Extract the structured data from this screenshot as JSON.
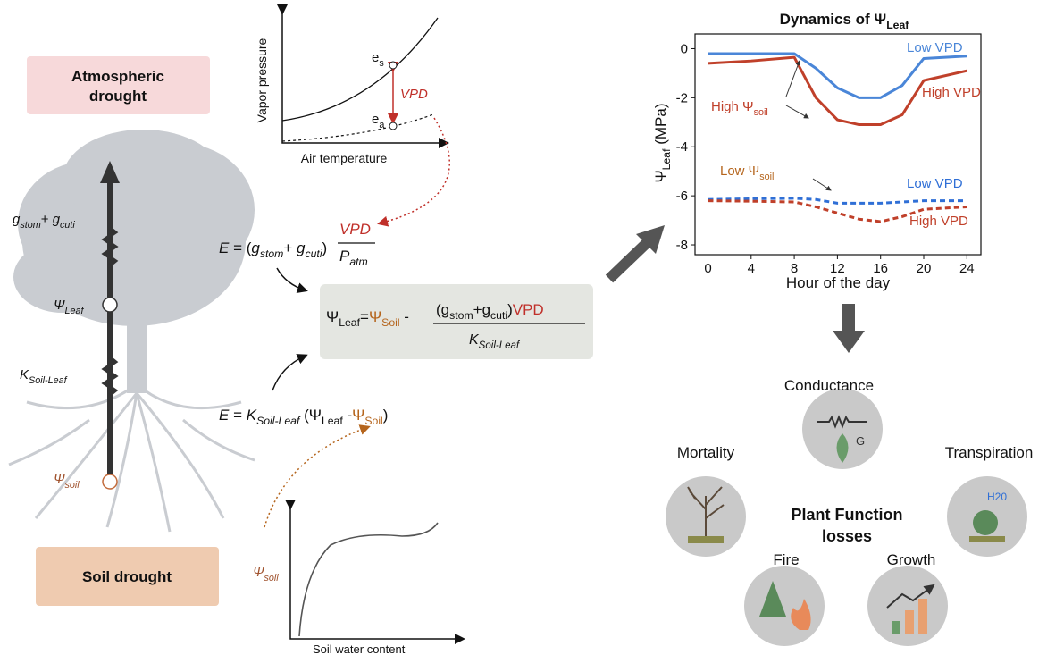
{
  "atmospheric_drought": [
    "Atmospheric",
    "drought"
  ],
  "soil_drought": "Soil drought",
  "tree": {
    "conductance": [
      {
        "text": "g",
        "italic": true
      },
      {
        "text": "stom",
        "sub": true,
        "italic": true
      },
      {
        "text": "+ "
      },
      {
        "text": "g",
        "italic": true
      },
      {
        "text": "cuti",
        "sub": true,
        "italic": true
      }
    ],
    "psi_leaf": [
      {
        "text": "Ψ",
        "italic": true
      },
      {
        "text": "Leaf",
        "sub": true,
        "italic": true
      }
    ],
    "k_soil_leaf": [
      {
        "text": "K",
        "italic": true
      },
      {
        "text": "Soil-Leaf",
        "sub": true,
        "italic": true
      }
    ],
    "psi_soil": [
      {
        "text": "Ψ",
        "italic": true,
        "color": "#a0522d"
      },
      {
        "text": "soil",
        "sub": true,
        "italic": true,
        "color": "#a0522d"
      }
    ]
  },
  "vapor_chart": {
    "y_label": "Vapor pressure",
    "x_label": "Air temperature",
    "es": [
      {
        "text": "e"
      },
      {
        "text": "s",
        "sub": true
      }
    ],
    "ea": [
      {
        "text": "e"
      },
      {
        "text": "a",
        "sub": true
      }
    ],
    "vpd": [
      {
        "text": "VPD",
        "italic": true,
        "color": "#c0302a"
      }
    ]
  },
  "equation_1": {
    "lhs": [
      {
        "text": "E",
        "italic": true
      },
      {
        "text": " = ("
      },
      {
        "text": "g",
        "italic": true
      },
      {
        "text": "stom",
        "sub": true,
        "italic": true
      },
      {
        "text": "+ "
      },
      {
        "text": "g",
        "italic": true
      },
      {
        "text": "cuti",
        "sub": true,
        "italic": true
      },
      {
        "text": ")"
      }
    ],
    "numerator": [
      {
        "text": "VPD",
        "italic": true,
        "color": "#c0302a"
      }
    ],
    "denominator": [
      {
        "text": "P",
        "italic": true
      },
      {
        "text": "atm",
        "sub": true,
        "italic": true
      }
    ]
  },
  "central_equation": {
    "lhs": [
      {
        "text": "Ψ"
      },
      {
        "text": "Leaf",
        "sub": true
      },
      {
        "text": "="
      },
      {
        "text": "Ψ",
        "color": "#b5651d"
      },
      {
        "text": "Soil",
        "sub": true,
        "color": "#b5651d"
      },
      {
        "text": " - "
      }
    ],
    "numerator": [
      {
        "text": "(g"
      },
      {
        "text": "stom",
        "sub": true
      },
      {
        "text": "+g"
      },
      {
        "text": "cuti",
        "sub": true
      },
      {
        "text": ")"
      },
      {
        "text": "VPD",
        "color": "#c0302a"
      }
    ],
    "denominator": [
      {
        "text": "K",
        "italic": true
      },
      {
        "text": "Soil-Leaf",
        "sub": true,
        "italic": true
      }
    ]
  },
  "equation_2": [
    {
      "text": "E",
      "italic": true
    },
    {
      "text": " = "
    },
    {
      "text": "K",
      "italic": true
    },
    {
      "text": "Soil-Leaf",
      "sub": true,
      "italic": true
    },
    {
      "text": " (Ψ"
    },
    {
      "text": "Leaf",
      "sub": true
    },
    {
      "text": " -"
    },
    {
      "text": "Ψ",
      "color": "#b5651d"
    },
    {
      "text": "Soil",
      "sub": true,
      "color": "#b5651d"
    },
    {
      "text": ")"
    }
  ],
  "soil_chart": {
    "y_label": [
      {
        "text": "Ψ",
        "italic": true,
        "color": "#a0522d"
      },
      {
        "text": "soil",
        "sub": true,
        "italic": true,
        "color": "#a0522d"
      }
    ],
    "x_label": "Soil water content"
  },
  "chart_data": {
    "type": "line",
    "title": [
      {
        "text": "Dynamics of Ψ"
      },
      {
        "text": "Leaf",
        "sub": true
      }
    ],
    "y_label": [
      {
        "text": "Ψ"
      },
      {
        "text": "Leaf",
        "sub": true
      },
      {
        "text": " (MPa)"
      }
    ],
    "x_label": "Hour of the day",
    "x": [
      0,
      4,
      8,
      10,
      12,
      14,
      16,
      18,
      20,
      24
    ],
    "xlim": [
      -1.2,
      25.3
    ],
    "xticks": [
      0,
      4,
      8,
      12,
      16,
      20,
      24
    ],
    "ylim": [
      -8.4,
      0.6
    ],
    "yticks": [
      0,
      -2,
      -4,
      -6,
      -8
    ],
    "series": [
      {
        "name": "Low VPD",
        "color": "#4a86d8",
        "dashed": false,
        "values": [
          -0.2,
          -0.2,
          -0.2,
          -0.8,
          -1.6,
          -2.0,
          -2.0,
          -1.5,
          -0.4,
          -0.3
        ]
      },
      {
        "name": "High VPD",
        "color": "#c0402a",
        "dashed": false,
        "values": [
          -0.6,
          -0.5,
          -0.35,
          -2.0,
          -2.9,
          -3.1,
          -3.1,
          -2.7,
          -1.3,
          -0.9
        ]
      },
      {
        "name": "Low VPD",
        "color": "#2f6fd6",
        "dashed": true,
        "values": [
          -6.15,
          -6.12,
          -6.1,
          -6.15,
          -6.3,
          -6.3,
          -6.3,
          -6.25,
          -6.2,
          -6.2
        ]
      },
      {
        "name": "High VPD",
        "color": "#c0402a",
        "dashed": true,
        "values": [
          -6.2,
          -6.22,
          -6.25,
          -6.45,
          -6.7,
          -6.95,
          -7.05,
          -6.85,
          -6.55,
          -6.45
        ]
      }
    ],
    "annotations": [
      [
        {
          "text": "High Ψ"
        },
        {
          "text": "soil",
          "sub": true
        }
      ],
      [
        {
          "text": "Low Ψ"
        },
        {
          "text": "soil",
          "sub": true
        }
      ]
    ]
  },
  "plant_functions": {
    "title": [
      "Plant Function",
      "losses"
    ],
    "items": [
      "Conductance",
      "Mortality",
      "Transpiration",
      "Fire",
      "Growth"
    ],
    "conductance_icon": "G",
    "transpiration_icon": "H20"
  }
}
